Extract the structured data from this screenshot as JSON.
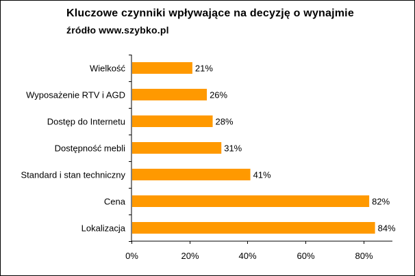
{
  "chart_data": {
    "type": "bar",
    "orientation": "horizontal",
    "title": "Kluczowe czynniki wpływające na decyzję o wynajmie",
    "subtitle": "źródło www.szybko.pl",
    "categories": [
      "Wielkość",
      "Wyposażenie RTV i AGD",
      "Dostęp do Internetu",
      "Dostępność mebli",
      "Standard i stan techniczny",
      "Cena",
      "Lokalizacja"
    ],
    "values": [
      21,
      26,
      28,
      31,
      41,
      82,
      84
    ],
    "value_labels": [
      "21%",
      "26%",
      "28%",
      "31%",
      "41%",
      "82%",
      "84%"
    ],
    "xlim": [
      0,
      90
    ],
    "xticks": [
      0,
      20,
      40,
      60,
      80
    ],
    "xtick_labels": [
      "0%",
      "20%",
      "40%",
      "60%",
      "80%"
    ],
    "xlabel": "",
    "ylabel": "",
    "grid": false,
    "bar_color": "#ff9900"
  }
}
